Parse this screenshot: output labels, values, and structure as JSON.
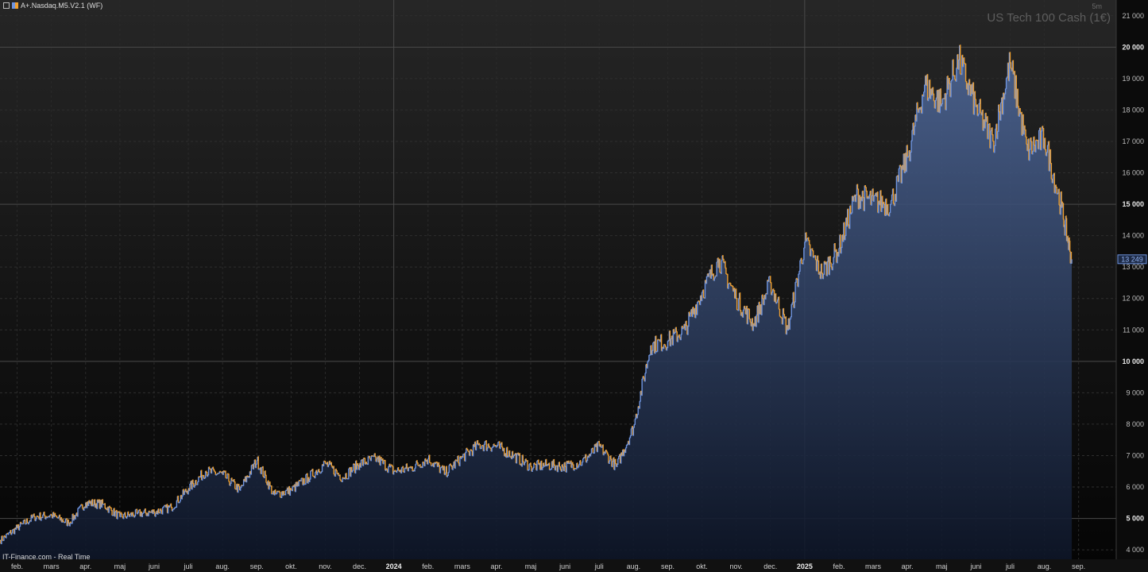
{
  "window": {
    "indicator_label": "A+.Nasdaq.M5.V2.1 (WF)",
    "symbol": "US Tech 100 Cash (1€)",
    "timeframe": "5m",
    "source": "IT-Finance.com - Real Time"
  },
  "colors": {
    "up": "#6f95e0",
    "down": "#f0a030",
    "background": "#0b0b0b",
    "grid": "#333333",
    "price_badge": "#6f95e0"
  },
  "chart_data": {
    "type": "line",
    "ylim": [
      3700,
      21500
    ],
    "y_ticks": [
      4000,
      5000,
      6000,
      7000,
      8000,
      9000,
      10000,
      11000,
      12000,
      13000,
      14000,
      15000,
      16000,
      17000,
      18000,
      19000,
      20000,
      21000
    ],
    "y_tick_labels": [
      "4 000",
      "5 000",
      "6 000",
      "7 000",
      "8 000",
      "9 000",
      "10 000",
      "11 000",
      "12 000",
      "13 000",
      "14 000",
      "15 000",
      "16 000",
      "17 000",
      "18 000",
      "19 000",
      "20 000",
      "21 000"
    ],
    "x_tick_labels": [
      "feb.",
      "mars",
      "apr.",
      "maj",
      "juni",
      "juli",
      "aug.",
      "sep.",
      "okt.",
      "nov.",
      "dec.",
      "2024",
      "feb.",
      "mars",
      "apr.",
      "maj",
      "juni",
      "juli",
      "aug.",
      "sep.",
      "okt.",
      "nov.",
      "dec.",
      "2025",
      "feb.",
      "mars",
      "apr.",
      "maj",
      "juni",
      "juli",
      "aug.",
      "sep."
    ],
    "last_price_label": "13 249",
    "last_price": 13249,
    "series": [
      {
        "x": [
          0,
          0.5,
          1,
          1.5,
          2,
          2.5,
          3,
          3.5,
          4,
          4.5,
          5,
          5.5,
          6,
          6.5,
          7,
          7.5,
          8,
          8.5,
          9,
          9.5,
          10,
          10.5,
          11,
          11.5,
          12,
          12.5,
          13,
          13.5,
          14,
          14.5,
          15,
          15.5,
          16,
          16.5,
          17,
          17.5,
          18,
          18.5,
          19,
          19.5,
          20,
          20.5,
          21,
          21.5,
          22,
          22.5,
          23,
          23.5,
          24,
          24.5,
          25,
          25.5,
          26,
          26.5,
          27,
          27.5,
          28,
          28.5,
          29,
          29.5,
          30,
          30.5,
          31,
          31.3
        ],
        "values": [
          4300,
          4700,
          5050,
          5100,
          4850,
          5500,
          5450,
          5050,
          5150,
          5200,
          5350,
          5950,
          6500,
          6400,
          5900,
          6850,
          5750,
          5900,
          6300,
          6750,
          6300,
          6750,
          6900,
          6500,
          6600,
          6900,
          6450,
          6950,
          7350,
          7300,
          7000,
          6650,
          6700,
          6650,
          6800,
          7300,
          6650,
          7900,
          10500,
          10650,
          11000,
          12200,
          13250,
          12000,
          11200,
          12500,
          11000,
          13800,
          12800,
          13600,
          15300,
          15100,
          15000,
          16500,
          18800,
          18200,
          19600,
          18100,
          17000,
          19500,
          16700,
          17100,
          14900,
          13249
        ]
      }
    ]
  }
}
